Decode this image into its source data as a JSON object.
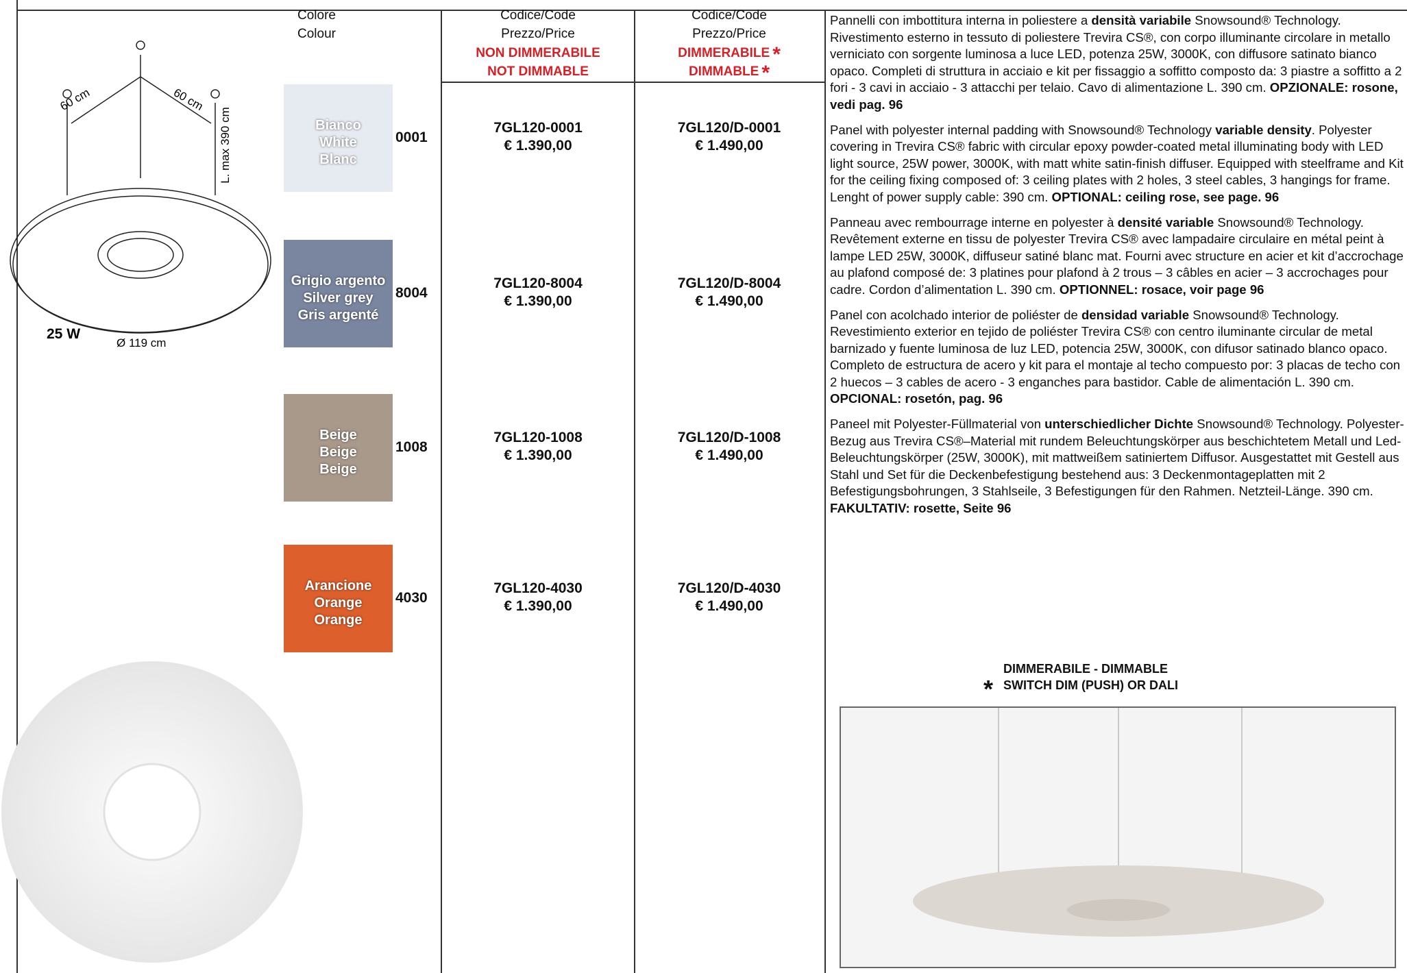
{
  "header": {
    "colour_label": [
      "Colore",
      "Colour"
    ],
    "asterisk": "*",
    "code_headers": [
      {
        "lines": [
          "Codice/Code",
          "Prezzo/Price"
        ],
        "notes": [
          "NON DIMMERABILE",
          "NOT DIMMABLE"
        ]
      },
      {
        "lines": [
          "Codice/Code",
          "Prezzo/Price"
        ],
        "notes": [
          "DIMMERABILE",
          "DIMMABLE"
        ]
      }
    ]
  },
  "diagram": {
    "spacing_left": "60 cm",
    "spacing_right": "60 cm",
    "cable": "L. max 390 cm",
    "power": "25 W",
    "diameter": "Ø 119 cm"
  },
  "rows": [
    {
      "names": [
        "Bianco",
        "White",
        "Blanc"
      ],
      "code": "0001",
      "color": "#e6eaf1",
      "products": [
        {
          "code": "7GL120-0001",
          "price": "€ 1.390,00"
        },
        {
          "code": "7GL120/D-0001",
          "price": "€ 1.490,00"
        }
      ]
    },
    {
      "names": [
        "Grigio argento",
        "Silver grey",
        "Gris argenté"
      ],
      "code": "8004",
      "color": "#7a86a0",
      "products": [
        {
          "code": "7GL120-8004",
          "price": "€ 1.390,00"
        },
        {
          "code": "7GL120/D-8004",
          "price": "€ 1.490,00"
        }
      ]
    },
    {
      "names": [
        "Beige",
        "Beige",
        "Beige"
      ],
      "code": "1008",
      "color": "#a8998b",
      "products": [
        {
          "code": "7GL120-1008",
          "price": "€ 1.390,00"
        },
        {
          "code": "7GL120/D-1008",
          "price": "€ 1.490,00"
        }
      ]
    },
    {
      "names": [
        "Arancione",
        "Orange",
        "Orange"
      ],
      "code": "4030",
      "color": "#dc5f2c",
      "products": [
        {
          "code": "7GL120-4030",
          "price": "€ 1.390,00"
        },
        {
          "code": "7GL120/D-4030",
          "price": "€ 1.490,00"
        }
      ]
    }
  ],
  "descriptions": [
    [
      {
        "t": "Pannelli con imbottitura interna in poliestere a "
      },
      {
        "t": "densità variabile",
        "b": true
      },
      {
        "t": " Snowsound® Technology. Rivestimento esterno in tessuto di poliestere Trevira CS®, con corpo illuminante circolare in metallo verniciato con sorgente luminosa a luce LED, potenza 25W, 3000K, con diffusore satinato bianco opaco. Completi di struttura in acciaio e kit per fissaggio a soffitto composto da: 3 piastre a soffitto a 2 fori - 3 cavi in acciaio - 3 attacchi per telaio. Cavo di alimentazione L. 390 cm. "
      },
      {
        "t": "OPZIONALE: rosone, vedi pag. 96",
        "b": true
      }
    ],
    [
      {
        "t": "Panel with polyester internal padding with Snowsound® Technology "
      },
      {
        "t": "variable density",
        "b": true
      },
      {
        "t": ". Polyester covering in Trevira CS® fabric with circular epoxy powder-coated metal illuminating body with LED light source, 25W power, 3000K, with matt white satin-finish diffuser. Equipped with steelframe and Kit for the ceiling fixing composed of: 3 ceiling plates with 2 holes, 3 steel cables, 3 hangings for frame. Lenght of power supply cable: 390 cm. "
      },
      {
        "t": "OPTIONAL: ceiling rose, see page. 96",
        "b": true
      }
    ],
    [
      {
        "t": "Panneau avec rembourrage interne en polyester à "
      },
      {
        "t": "densité variable",
        "b": true
      },
      {
        "t": " Snowsound® Technology. Revêtement externe en tissu de polyester Trevira CS® avec lampadaire circulaire en métal peint à lampe LED 25W, 3000K, diffuseur satiné blanc mat. Fourni avec structure en acier et kit d’accrochage au plafond composé de: 3 platines pour plafond à 2 trous – 3 câbles en acier – 3 accrochages pour cadre. Cordon d’alimentation L. 390 cm. "
      },
      {
        "t": "OPTIONNEL: rosace, voir page 96",
        "b": true
      }
    ],
    [
      {
        "t": "Panel con acolchado interior de poliéster de "
      },
      {
        "t": "densidad variable",
        "b": true
      },
      {
        "t": " Snowsound® Technology. Revestimiento exterior en tejido de poliéster Trevira CS® con centro iluminante circular de metal barnizado y fuente luminosa de luz LED, potencia 25W, 3000K, con difusor satinado blanco opaco. Completo de estructura de acero y kit para el montaje al techo compuesto por: 3 placas de techo con 2 huecos – 3 cables de acero - 3 enganches para bastidor. Cable de alimentación L. 390 cm. "
      },
      {
        "t": "OPCIONAL: rosetón, pag. 96",
        "b": true
      }
    ],
    [
      {
        "t": "Paneel mit Polyester-Füllmaterial von "
      },
      {
        "t": "unterschiedlicher Dichte",
        "b": true
      },
      {
        "t": " Snowsound® Technology. Polyester-Bezug aus Trevira CS®–Material mit rundem Beleuchtungskörper aus beschichtetem Metall und Led-Beleuchtungskörper (25W, 3000K), mit mattweißem satiniertem Diffusor. Ausgestattet mit Gestell aus Stahl und Set für die Deckenbefestigung bestehend aus: 3 Deckenmontageplatten mit 2 Befestigungsbohrungen, 3 Stahlseile, 3 Befestigungen für den Rahmen. Netzteil-Länge. 390 cm. "
      },
      {
        "t": "FAKULTATIV: rosette, Seite 96",
        "b": true
      }
    ]
  ],
  "footnote": [
    "DIMMERABILE - DIMMABLE",
    "SWITCH DIM (PUSH) OR DALI"
  ]
}
